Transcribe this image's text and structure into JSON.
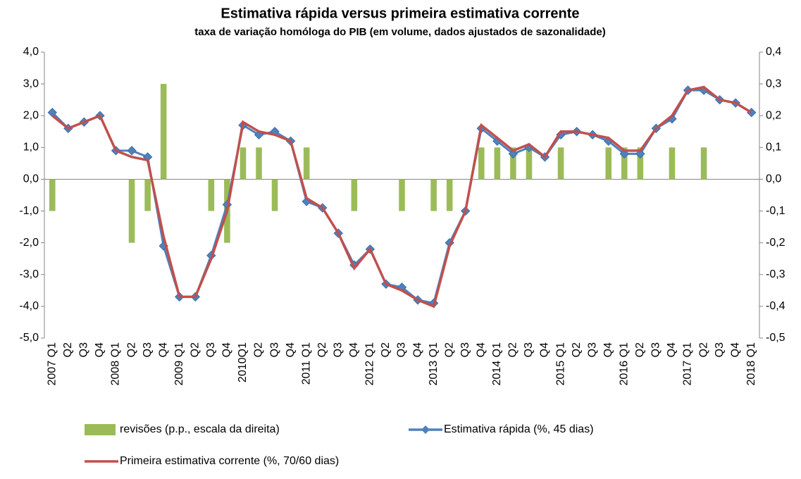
{
  "chart_data": {
    "type": "combo",
    "title": "Estimativa rápida versus primeira estimativa corrente",
    "subtitle": "taxa de variação homóloga do PIB (em volume, dados ajustados de sazonalidade)",
    "categories": [
      "2007 Q1",
      "Q2",
      "Q3",
      "Q4",
      "2008 Q1",
      "Q2",
      "Q3",
      "Q4",
      "2009 Q1",
      "Q2",
      "Q3",
      "Q4",
      "2010Q1",
      "Q2",
      "Q3",
      "Q4",
      "2011 Q1",
      "Q2",
      "Q3",
      "Q4",
      "2012 Q1",
      "Q2",
      "Q3",
      "Q4",
      "2013 Q1",
      "Q2",
      "Q3",
      "Q4",
      "2014 Q1",
      "Q2",
      "Q3",
      "Q4",
      "2015 Q1",
      "Q2",
      "Q3",
      "Q4",
      "2016 Q1",
      "Q2",
      "Q3",
      "Q4",
      "2017 Q1",
      "Q2",
      "Q3",
      "Q4",
      "2018 Q1"
    ],
    "ylim": [
      -5,
      4
    ],
    "yticks": [
      {
        "value": -5,
        "label": "-5,0"
      },
      {
        "value": -4,
        "label": "-4,0"
      },
      {
        "value": -3,
        "label": "-3,0"
      },
      {
        "value": -2,
        "label": "-2,0"
      },
      {
        "value": -1,
        "label": "-1,0"
      },
      {
        "value": 0,
        "label": "0,0"
      },
      {
        "value": 1,
        "label": "1,0"
      },
      {
        "value": 2,
        "label": "2,0"
      },
      {
        "value": 3,
        "label": "3,0"
      },
      {
        "value": 4,
        "label": "4,0"
      }
    ],
    "y2lim": [
      -0.5,
      0.4
    ],
    "y2ticks": [
      {
        "value": -0.5,
        "label": "-0,5"
      },
      {
        "value": -0.4,
        "label": "-0,4"
      },
      {
        "value": -0.3,
        "label": "-0,3"
      },
      {
        "value": -0.2,
        "label": "-0,2"
      },
      {
        "value": -0.1,
        "label": "-0,1"
      },
      {
        "value": 0,
        "label": "0,0"
      },
      {
        "value": 0.1,
        "label": "0,1"
      },
      {
        "value": 0.2,
        "label": "0,2"
      },
      {
        "value": 0.3,
        "label": "0,3"
      },
      {
        "value": 0.4,
        "label": "0,4"
      }
    ],
    "series": [
      {
        "name": "revisões (p.p., escala da direita)",
        "type": "bar",
        "axis": "y2",
        "color": "#9bbb59",
        "values": [
          -0.1,
          0,
          0,
          0,
          0,
          -0.2,
          -0.1,
          0.3,
          0,
          0,
          -0.1,
          -0.2,
          0.1,
          0.1,
          -0.1,
          0,
          0.1,
          0,
          0,
          -0.1,
          0,
          0,
          -0.1,
          0,
          -0.1,
          -0.1,
          0,
          0.1,
          0.1,
          0.1,
          0.1,
          0,
          0.1,
          0,
          0,
          0.1,
          0.1,
          0.1,
          0,
          0.1,
          0,
          0.1,
          0,
          0,
          0
        ]
      },
      {
        "name": "Estimativa rápida (%, 45 dias)",
        "type": "line",
        "marker": "diamond",
        "color": "#4f81bd",
        "values": [
          2.1,
          1.6,
          1.8,
          2.0,
          0.9,
          0.9,
          0.7,
          -2.1,
          -3.7,
          -3.7,
          -2.4,
          -0.8,
          1.7,
          1.4,
          1.5,
          1.2,
          -0.7,
          -0.9,
          -1.7,
          -2.7,
          -2.2,
          -3.3,
          -3.4,
          -3.8,
          -3.9,
          -2.0,
          -1.0,
          1.6,
          1.2,
          0.8,
          1.0,
          0.7,
          1.4,
          1.5,
          1.4,
          1.2,
          0.8,
          0.8,
          1.6,
          1.9,
          2.8,
          2.8,
          2.5,
          2.4,
          2.1
        ]
      },
      {
        "name": "Primeira estimativa corrente (%, 70/60 dias)",
        "type": "line",
        "color": "#c0504d",
        "values": [
          2.0,
          1.6,
          1.8,
          2.0,
          0.9,
          0.7,
          0.6,
          -1.8,
          -3.7,
          -3.7,
          -2.5,
          -1.0,
          1.8,
          1.5,
          1.4,
          1.2,
          -0.6,
          -0.9,
          -1.7,
          -2.8,
          -2.2,
          -3.3,
          -3.5,
          -3.8,
          -4.0,
          -2.1,
          -1.0,
          1.7,
          1.3,
          0.9,
          1.1,
          0.7,
          1.5,
          1.5,
          1.4,
          1.3,
          0.9,
          0.9,
          1.6,
          2.0,
          2.8,
          2.9,
          2.5,
          2.4,
          2.1
        ]
      }
    ]
  }
}
